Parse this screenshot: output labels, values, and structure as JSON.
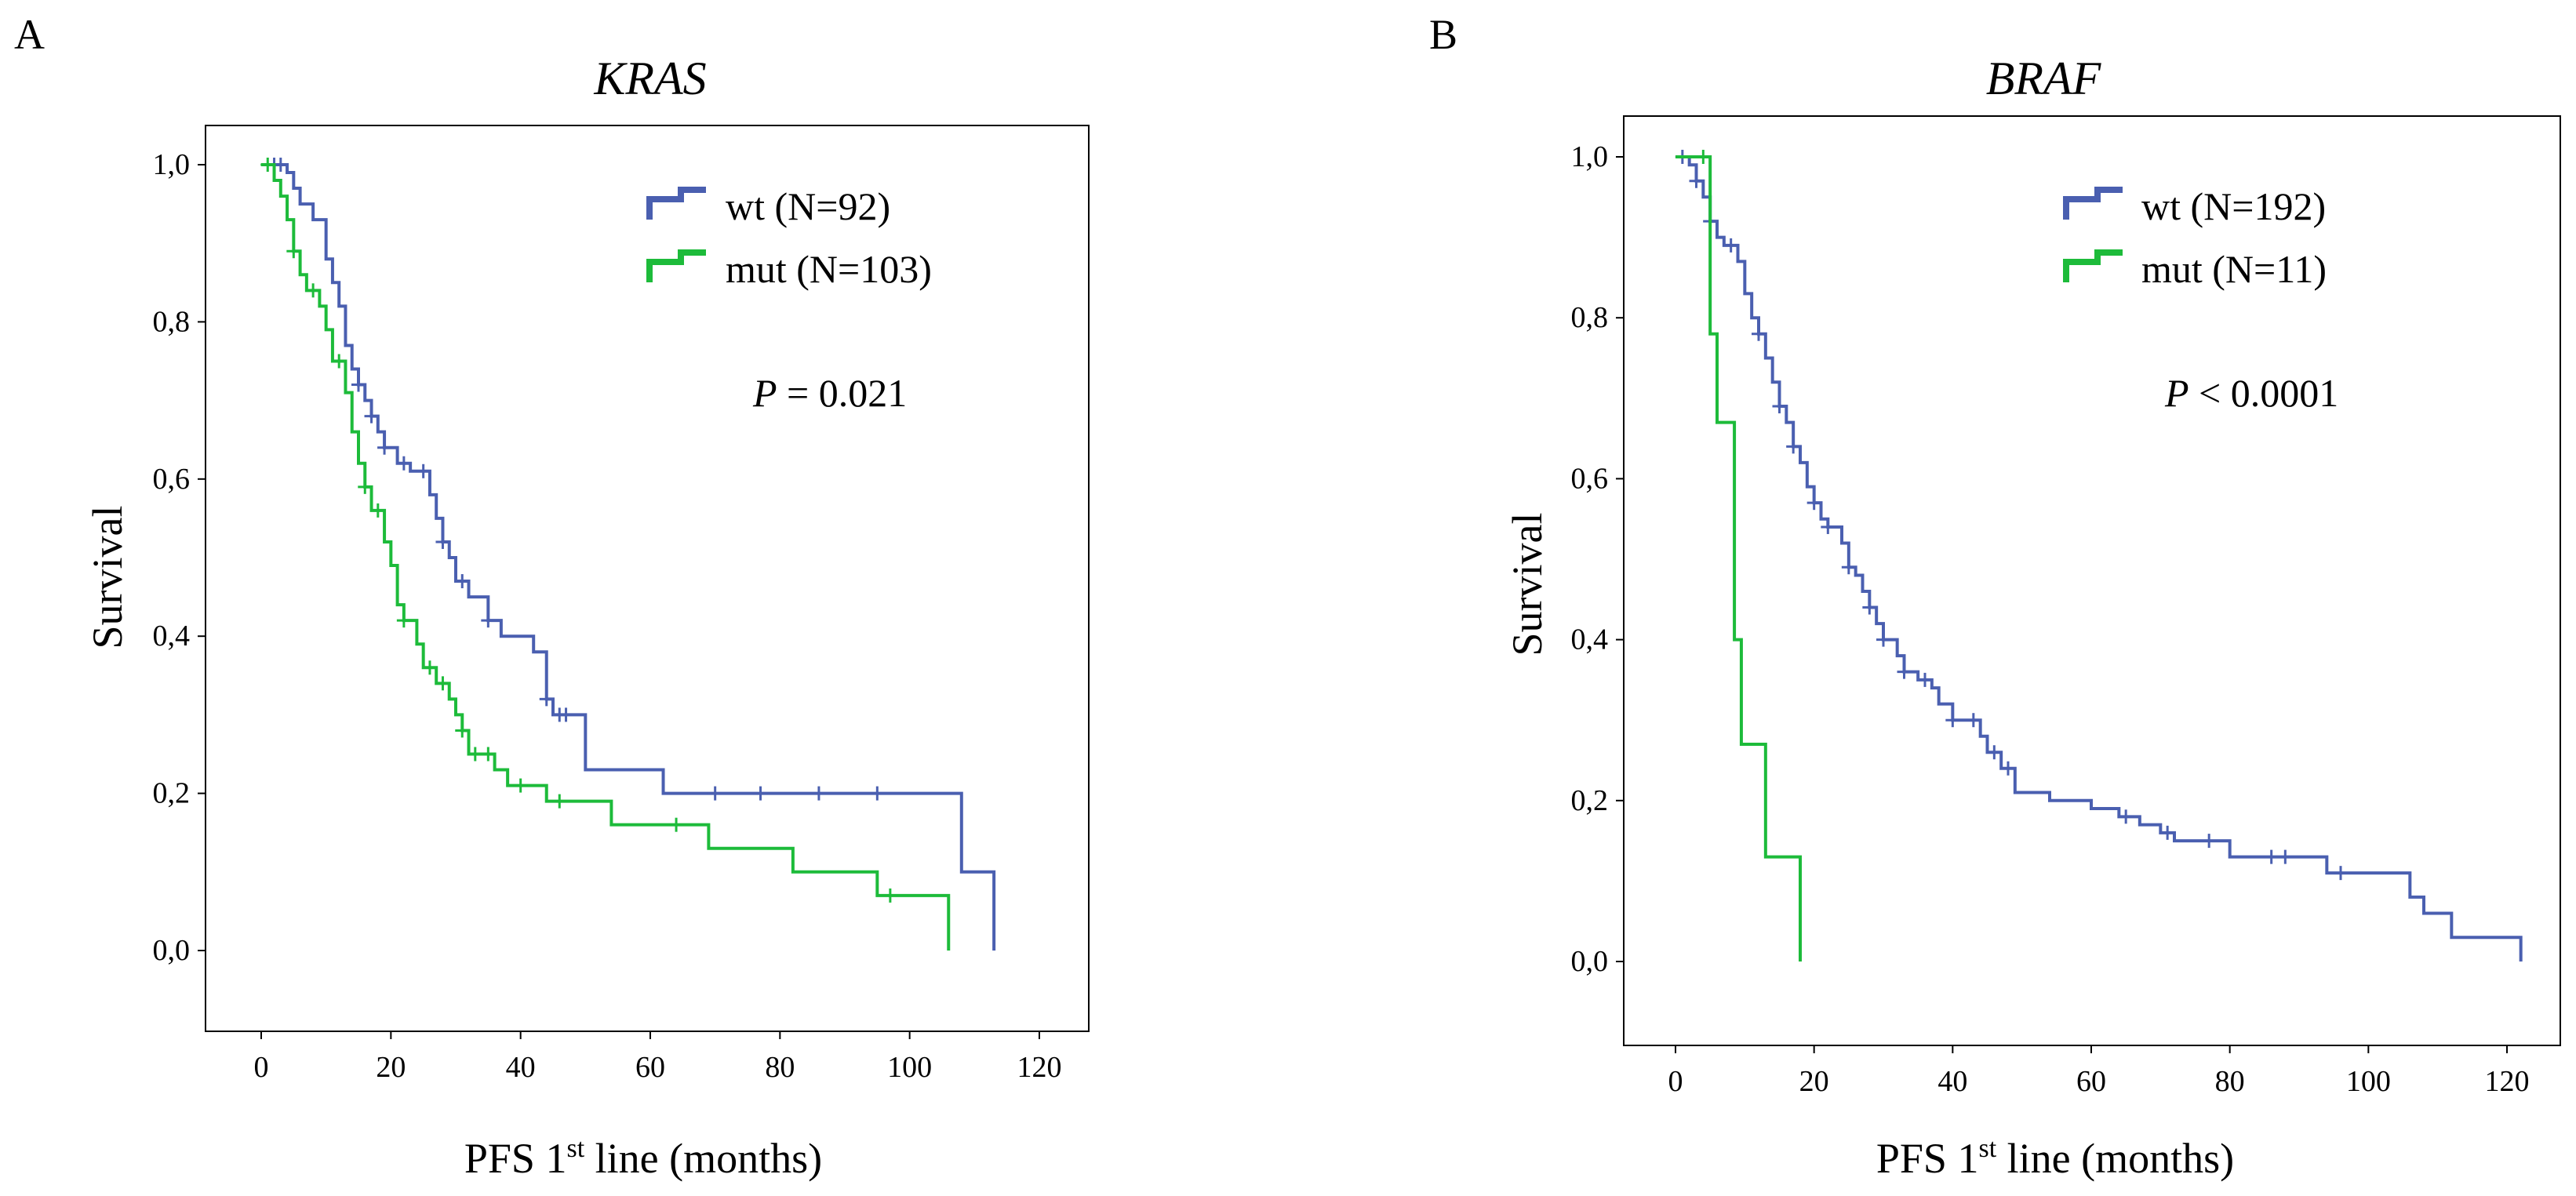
{
  "panels": [
    {
      "letter": "A",
      "title": "KRAS",
      "ylabel": "Survival",
      "xlabel_main": "PFS 1",
      "xlabel_sup": "st",
      "xlabel_rest": " line (months)",
      "legend": [
        {
          "label": "wt (N=92)",
          "color": "#4a5fb0"
        },
        {
          "label": "mut (N=103)",
          "color": "#1dbb3a"
        }
      ],
      "pvalue": {
        "italic": "P",
        "rest": " = 0.021"
      }
    },
    {
      "letter": "B",
      "title": "BRAF",
      "ylabel": "Survival",
      "xlabel_main": "PFS 1",
      "xlabel_sup": "st",
      "xlabel_rest": " line (months)",
      "legend": [
        {
          "label": "wt (N=192)",
          "color": "#4a5fb0"
        },
        {
          "label": "mut (N=11)",
          "color": "#1dbb3a"
        }
      ],
      "pvalue": {
        "italic": "P",
        "rest": " < 0.0001"
      }
    }
  ],
  "chart_data": [
    {
      "type": "line",
      "title": "KRAS",
      "xlabel": "PFS 1st line (months)",
      "ylabel": "Survival",
      "xlim": [
        0,
        120
      ],
      "ylim": [
        0,
        1
      ],
      "x_ticks": [
        0,
        20,
        40,
        60,
        80,
        100,
        120
      ],
      "y_ticks": [
        0,
        0.2,
        0.4,
        0.6,
        0.8,
        1.0
      ],
      "y_tick_labels": [
        "0,0",
        "0,2",
        "0,4",
        "0,6",
        "0,8",
        "1,0"
      ],
      "grid": false,
      "legend_position": "top-right",
      "annotation": "P = 0.021",
      "series": [
        {
          "name": "wt (N=92)",
          "color": "#4a5fb0",
          "steps": [
            [
              0,
              1.0
            ],
            [
              4,
              0.99
            ],
            [
              5,
              0.97
            ],
            [
              6,
              0.95
            ],
            [
              8,
              0.93
            ],
            [
              10,
              0.88
            ],
            [
              11,
              0.85
            ],
            [
              12,
              0.82
            ],
            [
              13,
              0.77
            ],
            [
              14,
              0.74
            ],
            [
              15,
              0.72
            ],
            [
              16,
              0.7
            ],
            [
              17,
              0.68
            ],
            [
              18,
              0.66
            ],
            [
              19,
              0.64
            ],
            [
              21,
              0.62
            ],
            [
              23,
              0.61
            ],
            [
              26,
              0.58
            ],
            [
              27,
              0.55
            ],
            [
              28,
              0.52
            ],
            [
              29,
              0.5
            ],
            [
              30,
              0.47
            ],
            [
              32,
              0.45
            ],
            [
              35,
              0.42
            ],
            [
              37,
              0.4
            ],
            [
              42,
              0.38
            ],
            [
              44,
              0.32
            ],
            [
              45,
              0.3
            ],
            [
              50,
              0.23
            ],
            [
              62,
              0.2
            ],
            [
              108,
              0.1
            ],
            [
              113,
              0.0
            ]
          ],
          "end_x": 113,
          "censored": [
            [
              2,
              1.0
            ],
            [
              3,
              1.0
            ],
            [
              15,
              0.72
            ],
            [
              17,
              0.68
            ],
            [
              19,
              0.64
            ],
            [
              22,
              0.62
            ],
            [
              25,
              0.61
            ],
            [
              28,
              0.52
            ],
            [
              31,
              0.47
            ],
            [
              35,
              0.42
            ],
            [
              44,
              0.32
            ],
            [
              46,
              0.3
            ],
            [
              47,
              0.3
            ],
            [
              70,
              0.2
            ],
            [
              77,
              0.2
            ],
            [
              86,
              0.2
            ],
            [
              95,
              0.2
            ]
          ]
        },
        {
          "name": "mut (N=103)",
          "color": "#1dbb3a",
          "steps": [
            [
              0,
              1.0
            ],
            [
              2,
              0.98
            ],
            [
              3,
              0.96
            ],
            [
              4,
              0.93
            ],
            [
              5,
              0.89
            ],
            [
              6,
              0.86
            ],
            [
              7,
              0.84
            ],
            [
              9,
              0.82
            ],
            [
              10,
              0.79
            ],
            [
              11,
              0.75
            ],
            [
              13,
              0.71
            ],
            [
              14,
              0.66
            ],
            [
              15,
              0.62
            ],
            [
              16,
              0.59
            ],
            [
              17,
              0.56
            ],
            [
              19,
              0.52
            ],
            [
              20,
              0.49
            ],
            [
              21,
              0.44
            ],
            [
              22,
              0.42
            ],
            [
              24,
              0.39
            ],
            [
              25,
              0.36
            ],
            [
              27,
              0.34
            ],
            [
              29,
              0.32
            ],
            [
              30,
              0.3
            ],
            [
              31,
              0.28
            ],
            [
              32,
              0.25
            ],
            [
              36,
              0.23
            ],
            [
              38,
              0.21
            ],
            [
              44,
              0.19
            ],
            [
              54,
              0.16
            ],
            [
              69,
              0.13
            ],
            [
              82,
              0.1
            ],
            [
              95,
              0.07
            ],
            [
              106,
              0.0
            ]
          ],
          "end_x": 106,
          "censored": [
            [
              1,
              1.0
            ],
            [
              5,
              0.89
            ],
            [
              8,
              0.84
            ],
            [
              12,
              0.75
            ],
            [
              16,
              0.59
            ],
            [
              18,
              0.56
            ],
            [
              22,
              0.42
            ],
            [
              26,
              0.36
            ],
            [
              28,
              0.34
            ],
            [
              31,
              0.28
            ],
            [
              33,
              0.25
            ],
            [
              35,
              0.25
            ],
            [
              40,
              0.21
            ],
            [
              46,
              0.19
            ],
            [
              64,
              0.16
            ],
            [
              97,
              0.07
            ]
          ]
        }
      ]
    },
    {
      "type": "line",
      "title": "BRAF",
      "xlabel": "PFS 1st line (months)",
      "ylabel": "Survival",
      "xlim": [
        0,
        120
      ],
      "ylim": [
        0,
        1
      ],
      "x_ticks": [
        0,
        20,
        40,
        60,
        80,
        100,
        120
      ],
      "y_ticks": [
        0,
        0.2,
        0.4,
        0.6,
        0.8,
        1.0
      ],
      "y_tick_labels": [
        "0,0",
        "0,2",
        "0,4",
        "0,6",
        "0,8",
        "1,0"
      ],
      "grid": false,
      "legend_position": "top-right",
      "annotation": "P < 0.0001",
      "series": [
        {
          "name": "wt (N=192)",
          "color": "#4a5fb0",
          "steps": [
            [
              0,
              1.0
            ],
            [
              2,
              0.99
            ],
            [
              3,
              0.97
            ],
            [
              4,
              0.95
            ],
            [
              5,
              0.92
            ],
            [
              6,
              0.9
            ],
            [
              7,
              0.89
            ],
            [
              9,
              0.87
            ],
            [
              10,
              0.83
            ],
            [
              11,
              0.8
            ],
            [
              12,
              0.78
            ],
            [
              13,
              0.75
            ],
            [
              14,
              0.72
            ],
            [
              15,
              0.69
            ],
            [
              16,
              0.67
            ],
            [
              17,
              0.64
            ],
            [
              18,
              0.62
            ],
            [
              19,
              0.59
            ],
            [
              20,
              0.57
            ],
            [
              21,
              0.55
            ],
            [
              22,
              0.54
            ],
            [
              24,
              0.52
            ],
            [
              25,
              0.49
            ],
            [
              26,
              0.48
            ],
            [
              27,
              0.46
            ],
            [
              28,
              0.44
            ],
            [
              29,
              0.42
            ],
            [
              30,
              0.4
            ],
            [
              32,
              0.38
            ],
            [
              33,
              0.36
            ],
            [
              35,
              0.35
            ],
            [
              37,
              0.34
            ],
            [
              38,
              0.32
            ],
            [
              40,
              0.3
            ],
            [
              44,
              0.28
            ],
            [
              45,
              0.26
            ],
            [
              47,
              0.24
            ],
            [
              49,
              0.21
            ],
            [
              54,
              0.2
            ],
            [
              60,
              0.19
            ],
            [
              64,
              0.18
            ],
            [
              67,
              0.17
            ],
            [
              70,
              0.16
            ],
            [
              72,
              0.15
            ],
            [
              80,
              0.13
            ],
            [
              94,
              0.11
            ],
            [
              106,
              0.08
            ],
            [
              108,
              0.06
            ],
            [
              112,
              0.03
            ],
            [
              122,
              0.0
            ]
          ],
          "end_x": 122,
          "censored": [
            [
              1,
              1.0
            ],
            [
              3,
              0.97
            ],
            [
              5,
              0.92
            ],
            [
              8,
              0.89
            ],
            [
              12,
              0.78
            ],
            [
              15,
              0.69
            ],
            [
              17,
              0.64
            ],
            [
              20,
              0.57
            ],
            [
              22,
              0.54
            ],
            [
              25,
              0.49
            ],
            [
              28,
              0.44
            ],
            [
              30,
              0.4
            ],
            [
              33,
              0.36
            ],
            [
              36,
              0.35
            ],
            [
              40,
              0.3
            ],
            [
              43,
              0.3
            ],
            [
              46,
              0.26
            ],
            [
              48,
              0.24
            ],
            [
              65,
              0.18
            ],
            [
              71,
              0.16
            ],
            [
              77,
              0.15
            ],
            [
              86,
              0.13
            ],
            [
              88,
              0.13
            ],
            [
              96,
              0.11
            ]
          ]
        },
        {
          "name": "mut (N=11)",
          "color": "#1dbb3a",
          "steps": [
            [
              0,
              1.0
            ],
            [
              5,
              0.78
            ],
            [
              6,
              0.67
            ],
            [
              8.5,
              0.4
            ],
            [
              9.5,
              0.27
            ],
            [
              13,
              0.13
            ],
            [
              18,
              0.0
            ]
          ],
          "end_x": 18,
          "censored": [
            [
              4,
              1.0
            ]
          ]
        }
      ]
    }
  ]
}
